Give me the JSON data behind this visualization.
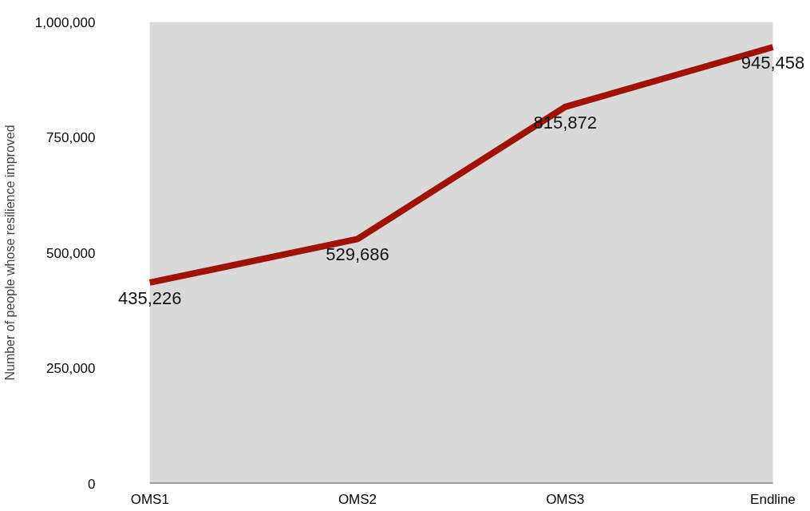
{
  "chart_data": {
    "type": "line",
    "ylabel": "Number of people whose resilience improved",
    "categories": [
      "OMS1",
      "OMS2",
      "OMS3",
      "Endline"
    ],
    "series": [
      {
        "color": "#a01206",
        "values": [
          435226,
          529686,
          815872,
          945458
        ],
        "value_labels": [
          "435,226",
          "529,686",
          "815,872",
          "945,458"
        ]
      }
    ],
    "ylim": [
      0,
      1000000
    ],
    "yticks": [
      0,
      {
        "value": 250000,
        "label": "250,000"
      },
      {
        "value": 500000,
        "label": "500,000"
      },
      {
        "value": 750000,
        "label": "750,000"
      },
      {
        "value": 1000000,
        "label": "1,000,000"
      }
    ],
    "grid": false,
    "marker": "none",
    "line_style": "solid"
  }
}
